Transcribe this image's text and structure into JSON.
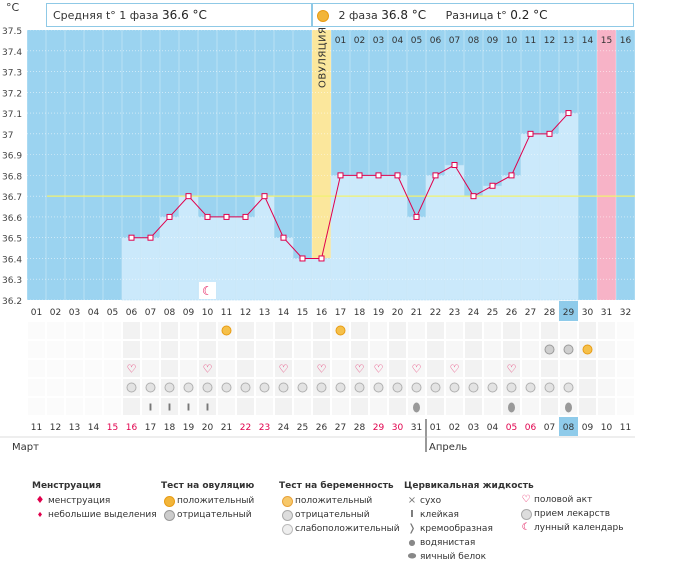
{
  "header": {
    "unit": "°C",
    "phase1_label": "Средняя t° 1 фаза",
    "phase1_value": "36.6 °C",
    "phase2_label": "2 фаза",
    "phase2_value": "36.8 °C",
    "diff_label": "Разница t°",
    "diff_value": "0.2 °C",
    "ovulation_label": "ОВУЛЯЦИЯ"
  },
  "chart_data": {
    "type": "line",
    "title": "",
    "ylabel": "°C",
    "ylim": [
      36.2,
      37.5
    ],
    "y_ticks": [
      "36.2",
      "36.3",
      "36.4",
      "36.5",
      "36.6",
      "36.7",
      "36.8",
      "36.9",
      "37",
      "37.1",
      "37.2",
      "37.3",
      "37.4",
      "37.5"
    ],
    "average_line": 36.7,
    "cycle_days": [
      "01",
      "02",
      "03",
      "04",
      "05",
      "06",
      "07",
      "08",
      "09",
      "10",
      "11",
      "12",
      "13",
      "14",
      "15",
      "16",
      "17",
      "18",
      "19",
      "20",
      "21",
      "22",
      "23",
      "24",
      "25",
      "26",
      "27",
      "28",
      "29",
      "30",
      "31",
      "32"
    ],
    "post_ovulation_days": [
      "01",
      "02",
      "03",
      "04",
      "05",
      "06",
      "07",
      "08",
      "09",
      "10",
      "11",
      "12",
      "13",
      "14",
      "15",
      "16"
    ],
    "ovulation_day": 16,
    "current_day": 29,
    "expected_period_day": 31,
    "series": [
      {
        "name": "Базальная температура",
        "values": [
          null,
          null,
          null,
          null,
          null,
          36.5,
          36.5,
          36.6,
          36.7,
          36.6,
          36.6,
          36.6,
          36.7,
          36.5,
          36.4,
          36.4,
          36.8,
          36.8,
          36.8,
          36.8,
          36.6,
          36.8,
          36.85,
          36.7,
          36.75,
          36.8,
          37.0,
          37.0,
          37.1,
          null,
          null,
          null
        ]
      }
    ],
    "dates": [
      "11",
      "12",
      "13",
      "14",
      "15",
      "16",
      "17",
      "18",
      "19",
      "20",
      "21",
      "22",
      "23",
      "24",
      "25",
      "26",
      "27",
      "28",
      "29",
      "30",
      "31",
      "01",
      "02",
      "03",
      "04",
      "05",
      "06",
      "07",
      "08",
      "09",
      "10",
      "11"
    ],
    "date_colors": [
      "#333",
      "#333",
      "#333",
      "#333",
      "#e0004c",
      "#e0004c",
      "#333",
      "#333",
      "#333",
      "#333",
      "#333",
      "#e0004c",
      "#e0004c",
      "#333",
      "#333",
      "#333",
      "#333",
      "#333",
      "#e0004c",
      "#e0004c",
      "#333",
      "#333",
      "#333",
      "#333",
      "#333",
      "#e0004c",
      "#e0004c",
      "#333",
      "#333",
      "#333",
      "#333",
      "#333"
    ],
    "months": [
      "Март",
      "Апрель"
    ],
    "marker_rows": [
      {
        "type": "ovulation_test",
        "cells": {
          "11": "positive",
          "17": "positive"
        }
      },
      {
        "type": "pregnancy_test",
        "cells": {
          "28": "negative",
          "29": "negative",
          "30": "positive"
        }
      },
      {
        "type": "sex",
        "cells": {
          "6": "heart",
          "10": "heart",
          "14": "heart",
          "16": "heart",
          "18": "heart",
          "19": "heart",
          "21": "heart",
          "23": "heart",
          "26": "heart"
        }
      },
      {
        "type": "medication",
        "cells": {
          "6": "pill",
          "7": "pill",
          "8": "pill",
          "9": "pill",
          "10": "pill",
          "11": "pill",
          "12": "pill",
          "13": "pill",
          "14": "pill",
          "15": "pill",
          "16": "pill",
          "17": "pill",
          "18": "pill",
          "19": "pill",
          "20": "pill",
          "21": "pill",
          "22": "pill",
          "23": "pill",
          "24": "pill",
          "25": "pill",
          "26": "pill",
          "27": "pill",
          "28": "pill",
          "29": "pill"
        }
      },
      {
        "type": "cervical_fluid",
        "cells": {
          "7": "sticky",
          "8": "sticky",
          "9": "sticky",
          "10": "sticky",
          "21": "eggwhite",
          "26": "eggwhite",
          "29": "eggwhite"
        }
      }
    ],
    "lunar_day": 10
  },
  "legend": {
    "menstruation": {
      "title": "Менструация",
      "items": [
        "менструация",
        "небольшие выделения"
      ]
    },
    "ovulation_test": {
      "title": "Тест на овуляцию",
      "items": [
        "положительный",
        "отрицательный"
      ]
    },
    "pregnancy_test": {
      "title": "Тест на беременность",
      "items": [
        "положительный",
        "отрицательный",
        "слабоположительный"
      ]
    },
    "cervical": {
      "title": "Цервикальная жидкость",
      "items": [
        "сухо",
        "клейкая",
        "кремообразная",
        "водянистая",
        "яичный белок"
      ]
    },
    "other": {
      "items": [
        "половой акт",
        "прием лекарств",
        "лунный календарь"
      ]
    }
  },
  "colors": {
    "background": "#9bd3f0",
    "bar": "#cbe9fb",
    "line": "#e0004c",
    "average": "#f2f271",
    "ovulation": "#fbe79c",
    "period": "#f7b3c7",
    "current": "#8fcbea"
  }
}
